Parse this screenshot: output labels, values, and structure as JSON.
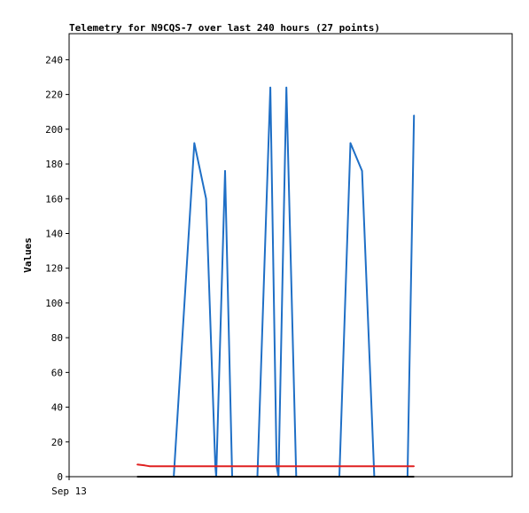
{
  "chart_data": {
    "type": "line",
    "title": "Telemetry for N9CQS-7 over last 240 hours (27 points)",
    "xlabel": "",
    "ylabel": "Values",
    "ylim": [
      0,
      255
    ],
    "yticks": [
      0,
      20,
      40,
      60,
      80,
      100,
      120,
      140,
      160,
      180,
      200,
      220,
      240
    ],
    "xticks": [
      {
        "label": "Sep 13",
        "pos": 0
      }
    ],
    "xlim": [
      0,
      240
    ],
    "grid": false,
    "legend": "none",
    "series": [
      {
        "color": "#1f6fc6",
        "points": [
          [
            56.7,
            0
          ],
          [
            67.8,
            192
          ],
          [
            74.2,
            160
          ],
          [
            79.2,
            6
          ],
          [
            79.7,
            0
          ],
          [
            84.5,
            176
          ],
          [
            88.3,
            0
          ],
          [
            102.0,
            0
          ],
          [
            109.0,
            224
          ],
          [
            112.4,
            6
          ],
          [
            113.4,
            0
          ],
          [
            117.7,
            224
          ],
          [
            123.0,
            0
          ],
          [
            146.4,
            0
          ],
          [
            152.4,
            192
          ],
          [
            158.7,
            176
          ],
          [
            165.3,
            0
          ],
          [
            183.3,
            0
          ],
          [
            186.8,
            208
          ]
        ]
      },
      {
        "color": "#e02020",
        "points": [
          [
            36.9,
            7
          ],
          [
            41.0,
            6.5
          ],
          [
            43.5,
            6
          ],
          [
            186.8,
            6
          ]
        ]
      },
      {
        "color": "#000000",
        "points": [
          [
            36.9,
            0
          ],
          [
            186.8,
            0
          ]
        ]
      }
    ]
  }
}
